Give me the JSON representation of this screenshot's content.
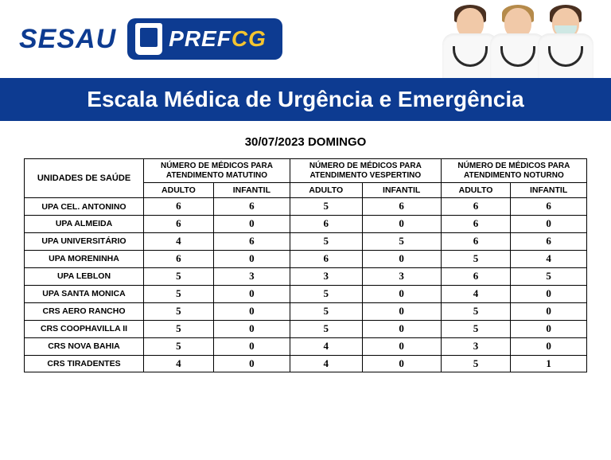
{
  "brand": {
    "sesau": "SESAU",
    "pref": "PREF",
    "cg": "CG"
  },
  "title_bar": "Escala Médica de Urgência e Emergência",
  "date_line": "30/07/2023 DOMINGO",
  "colors": {
    "brand_blue": "#0d3b91",
    "brand_yellow": "#f4c430",
    "white": "#ffffff",
    "black": "#000000"
  },
  "table": {
    "unit_header": "UNIDADES DE SAÚDE",
    "group_headers": [
      "NÚMERO DE MÉDICOS PARA ATENDIMENTO MATUTINO",
      "NÚMERO DE MÉDICOS PARA ATENDIMENTO VESPERTINO",
      "NÚMERO DE MÉDICOS PARA ATENDIMENTO NOTURNO"
    ],
    "sub_headers": [
      "ADULTO",
      "INFANTIL",
      "ADULTO",
      "INFANTIL",
      "ADULTO",
      "INFANTIL"
    ],
    "rows": [
      {
        "unit": "UPA CEL. ANTONINO",
        "vals": [
          "6",
          "6",
          "5",
          "6",
          "6",
          "6"
        ]
      },
      {
        "unit": "UPA ALMEIDA",
        "vals": [
          "6",
          "0",
          "6",
          "0",
          "6",
          "0"
        ]
      },
      {
        "unit": "UPA UNIVERSITÁRIO",
        "vals": [
          "4",
          "6",
          "5",
          "5",
          "6",
          "6"
        ]
      },
      {
        "unit": "UPA MORENINHA",
        "vals": [
          "6",
          "0",
          "6",
          "0",
          "5",
          "4"
        ]
      },
      {
        "unit": "UPA LEBLON",
        "vals": [
          "5",
          "3",
          "3",
          "3",
          "6",
          "5"
        ]
      },
      {
        "unit": "UPA SANTA MONICA",
        "vals": [
          "5",
          "0",
          "5",
          "0",
          "4",
          "0"
        ]
      },
      {
        "unit": "CRS AERO RANCHO",
        "vals": [
          "5",
          "0",
          "5",
          "0",
          "5",
          "0"
        ]
      },
      {
        "unit": "CRS COOPHAVILLA II",
        "vals": [
          "5",
          "0",
          "5",
          "0",
          "5",
          "0"
        ]
      },
      {
        "unit": "CRS NOVA BAHIA",
        "vals": [
          "5",
          "0",
          "4",
          "0",
          "3",
          "0"
        ]
      },
      {
        "unit": "CRS TIRADENTES",
        "vals": [
          "4",
          "0",
          "4",
          "0",
          "5",
          "1"
        ]
      }
    ]
  }
}
